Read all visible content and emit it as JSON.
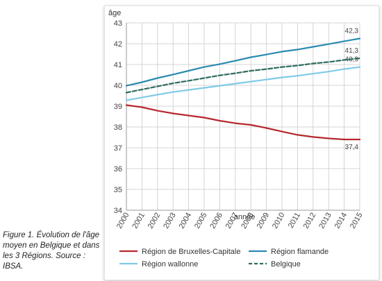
{
  "caption": "Figure 1. Évolution de l'âge moyen en Belgique et dans les 3 Régions. Source : IBSA.",
  "chart_data": {
    "type": "line",
    "ylabel": "âge",
    "xlabel": "année",
    "ylim": [
      34,
      43
    ],
    "yticks": [
      "34",
      "35",
      "36",
      "37",
      "38",
      "39",
      "40",
      "41",
      "42",
      "43"
    ],
    "x": [
      "2000",
      "2001",
      "2002",
      "2003",
      "2004",
      "2005",
      "2006",
      "2007",
      "2008",
      "2009",
      "2010",
      "2011",
      "2012",
      "2013",
      "2014",
      "2015"
    ],
    "grid": true,
    "legend_position": "bottom",
    "series": [
      {
        "name": "Région de Bruxelles-Capitale",
        "color": "#b5282e",
        "dash": false,
        "values": [
          39.05,
          38.95,
          38.78,
          38.65,
          38.55,
          38.45,
          38.3,
          38.18,
          38.1,
          37.95,
          37.78,
          37.62,
          37.52,
          37.45,
          37.4,
          37.4
        ],
        "end_label": "37,4"
      },
      {
        "name": "Région flamande",
        "color": "#2a8ab0",
        "dash": false,
        "values": [
          39.98,
          40.15,
          40.35,
          40.52,
          40.7,
          40.88,
          41.02,
          41.18,
          41.35,
          41.48,
          41.62,
          41.72,
          41.85,
          41.98,
          42.12,
          42.25
        ],
        "end_label": "42,3"
      },
      {
        "name": "Région wallonne",
        "color": "#7fcbe6",
        "dash": false,
        "values": [
          39.28,
          39.42,
          39.55,
          39.68,
          39.78,
          39.88,
          39.98,
          40.08,
          40.18,
          40.28,
          40.38,
          40.46,
          40.56,
          40.66,
          40.78,
          40.88
        ],
        "end_label": "40,9"
      },
      {
        "name": "Belgique",
        "color": "#2e6b5e",
        "dash": true,
        "values": [
          39.65,
          39.8,
          39.95,
          40.1,
          40.22,
          40.35,
          40.48,
          40.58,
          40.7,
          40.78,
          40.88,
          40.95,
          41.05,
          41.12,
          41.22,
          41.3
        ],
        "end_label": "41,3"
      }
    ]
  }
}
